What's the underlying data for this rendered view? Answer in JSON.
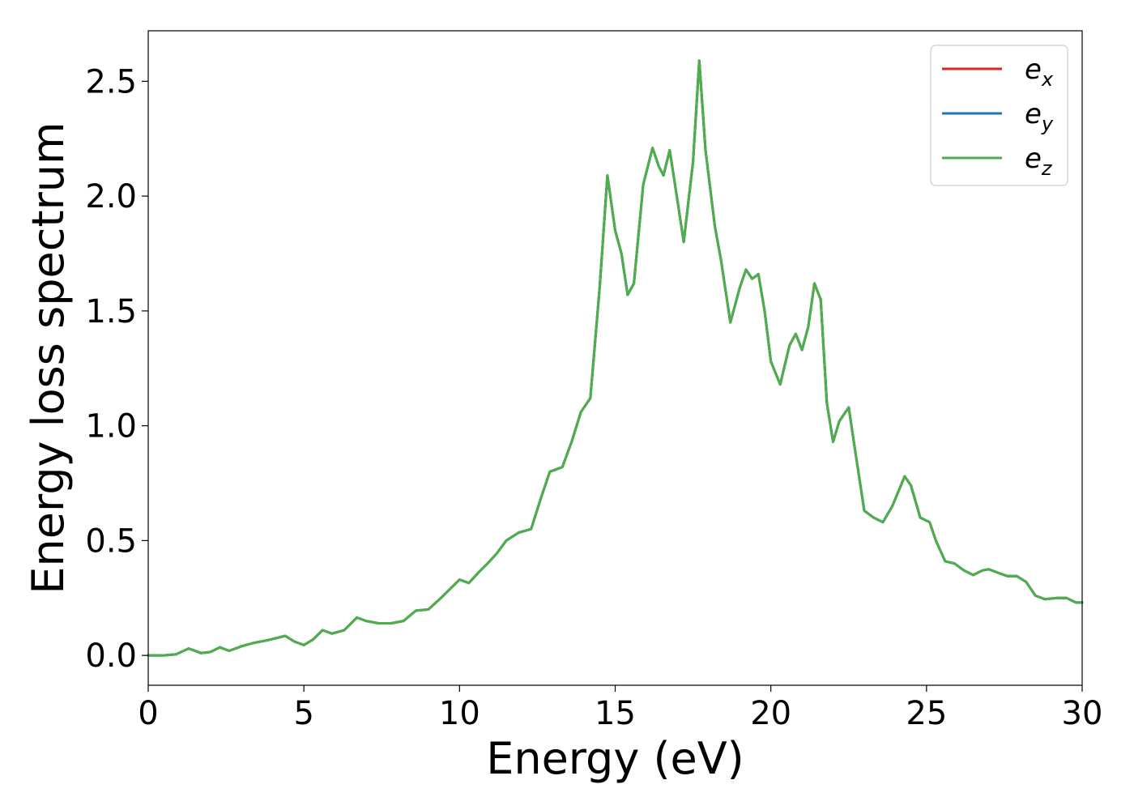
{
  "chart_data": {
    "type": "line",
    "title": "",
    "xlabel": "Energy (eV)",
    "ylabel": "Energy loss spectrum",
    "xlim": [
      0,
      30
    ],
    "ylim": [
      -0.13,
      2.72
    ],
    "xticks": [
      0,
      5,
      10,
      15,
      20,
      25,
      30
    ],
    "yticks": [
      0.0,
      0.5,
      1.0,
      1.5,
      2.0,
      2.5
    ],
    "xtick_labels": [
      "0",
      "5",
      "10",
      "15",
      "20",
      "25",
      "30"
    ],
    "ytick_labels": [
      "0.0",
      "0.5",
      "1.0",
      "1.5",
      "2.0",
      "2.5"
    ],
    "grid": false,
    "legend_position": "top-right",
    "legend": [
      {
        "base": "e",
        "sub": "x",
        "color": "#d62728"
      },
      {
        "base": "e",
        "sub": "y",
        "color": "#1f77b4"
      },
      {
        "base": "e",
        "sub": "z",
        "color": "#4daf4a"
      }
    ],
    "x": [
      0,
      0.5,
      0.9,
      1.3,
      1.7,
      2.0,
      2.3,
      2.6,
      3.0,
      3.4,
      3.8,
      4.1,
      4.4,
      4.7,
      5.0,
      5.3,
      5.6,
      5.9,
      6.3,
      6.7,
      7.0,
      7.4,
      7.8,
      8.2,
      8.6,
      9.0,
      9.4,
      9.7,
      10.0,
      10.3,
      10.6,
      10.9,
      11.2,
      11.5,
      11.9,
      12.3,
      12.6,
      12.9,
      13.3,
      13.6,
      13.9,
      14.2,
      14.5,
      14.75,
      15.0,
      15.2,
      15.4,
      15.6,
      15.9,
      16.2,
      16.4,
      16.55,
      16.75,
      17.0,
      17.2,
      17.5,
      17.7,
      17.9,
      18.2,
      18.4,
      18.7,
      19.0,
      19.2,
      19.4,
      19.6,
      19.8,
      20.0,
      20.3,
      20.6,
      20.8,
      21.0,
      21.2,
      21.4,
      21.6,
      21.8,
      22.0,
      22.2,
      22.5,
      22.7,
      23.0,
      23.3,
      23.6,
      23.9,
      24.3,
      24.5,
      24.8,
      25.1,
      25.3,
      25.6,
      25.9,
      26.2,
      26.5,
      26.8,
      27.0,
      27.3,
      27.6,
      27.9,
      28.2,
      28.5,
      28.8,
      29.2,
      29.5,
      29.8,
      30.0
    ],
    "series": [
      {
        "name": "e_x",
        "color": "#d62728",
        "values": [
          0.0,
          0.0,
          0.005,
          0.03,
          0.01,
          0.015,
          0.035,
          0.02,
          0.04,
          0.055,
          0.065,
          0.075,
          0.085,
          0.06,
          0.045,
          0.07,
          0.11,
          0.095,
          0.11,
          0.165,
          0.15,
          0.14,
          0.14,
          0.15,
          0.195,
          0.2,
          0.25,
          0.29,
          0.33,
          0.315,
          0.36,
          0.4,
          0.445,
          0.5,
          0.535,
          0.55,
          0.68,
          0.8,
          0.82,
          0.93,
          1.06,
          1.12,
          1.6,
          2.09,
          1.85,
          1.75,
          1.57,
          1.62,
          2.05,
          2.21,
          2.13,
          2.09,
          2.2,
          1.98,
          1.8,
          2.15,
          2.59,
          2.2,
          1.87,
          1.72,
          1.45,
          1.6,
          1.68,
          1.64,
          1.66,
          1.5,
          1.28,
          1.18,
          1.35,
          1.4,
          1.33,
          1.43,
          1.62,
          1.55,
          1.1,
          0.93,
          1.02,
          1.08,
          0.9,
          0.63,
          0.6,
          0.58,
          0.65,
          0.78,
          0.74,
          0.6,
          0.58,
          0.5,
          0.41,
          0.4,
          0.37,
          0.35,
          0.37,
          0.375,
          0.36,
          0.345,
          0.345,
          0.32,
          0.26,
          0.245,
          0.25,
          0.25,
          0.23,
          0.23
        ]
      },
      {
        "name": "e_y",
        "color": "#1f77b4",
        "values": [
          0.0,
          0.0,
          0.005,
          0.03,
          0.01,
          0.015,
          0.035,
          0.02,
          0.04,
          0.055,
          0.065,
          0.075,
          0.085,
          0.06,
          0.045,
          0.07,
          0.11,
          0.095,
          0.11,
          0.165,
          0.15,
          0.14,
          0.14,
          0.15,
          0.195,
          0.2,
          0.25,
          0.29,
          0.33,
          0.315,
          0.36,
          0.4,
          0.445,
          0.5,
          0.535,
          0.55,
          0.68,
          0.8,
          0.82,
          0.93,
          1.06,
          1.12,
          1.6,
          2.09,
          1.85,
          1.75,
          1.57,
          1.62,
          2.05,
          2.21,
          2.13,
          2.09,
          2.2,
          1.98,
          1.8,
          2.15,
          2.59,
          2.2,
          1.87,
          1.72,
          1.45,
          1.6,
          1.68,
          1.64,
          1.66,
          1.5,
          1.28,
          1.18,
          1.35,
          1.4,
          1.33,
          1.43,
          1.62,
          1.55,
          1.1,
          0.93,
          1.02,
          1.08,
          0.9,
          0.63,
          0.6,
          0.58,
          0.65,
          0.78,
          0.74,
          0.6,
          0.58,
          0.5,
          0.41,
          0.4,
          0.37,
          0.35,
          0.37,
          0.375,
          0.36,
          0.345,
          0.345,
          0.32,
          0.26,
          0.245,
          0.25,
          0.25,
          0.23,
          0.23
        ]
      },
      {
        "name": "e_z",
        "color": "#4daf4a",
        "values": [
          0.0,
          0.0,
          0.005,
          0.03,
          0.01,
          0.015,
          0.035,
          0.02,
          0.04,
          0.055,
          0.065,
          0.075,
          0.085,
          0.06,
          0.045,
          0.07,
          0.11,
          0.095,
          0.11,
          0.165,
          0.15,
          0.14,
          0.14,
          0.15,
          0.195,
          0.2,
          0.25,
          0.29,
          0.33,
          0.315,
          0.36,
          0.4,
          0.445,
          0.5,
          0.535,
          0.55,
          0.68,
          0.8,
          0.82,
          0.93,
          1.06,
          1.12,
          1.6,
          2.09,
          1.85,
          1.75,
          1.57,
          1.62,
          2.05,
          2.21,
          2.13,
          2.09,
          2.2,
          1.98,
          1.8,
          2.15,
          2.59,
          2.2,
          1.87,
          1.72,
          1.45,
          1.6,
          1.68,
          1.64,
          1.66,
          1.5,
          1.28,
          1.18,
          1.35,
          1.4,
          1.33,
          1.43,
          1.62,
          1.55,
          1.1,
          0.93,
          1.02,
          1.08,
          0.9,
          0.63,
          0.6,
          0.58,
          0.65,
          0.78,
          0.74,
          0.6,
          0.58,
          0.5,
          0.41,
          0.4,
          0.37,
          0.35,
          0.37,
          0.375,
          0.36,
          0.345,
          0.345,
          0.32,
          0.26,
          0.245,
          0.25,
          0.25,
          0.23,
          0.23
        ]
      }
    ]
  }
}
